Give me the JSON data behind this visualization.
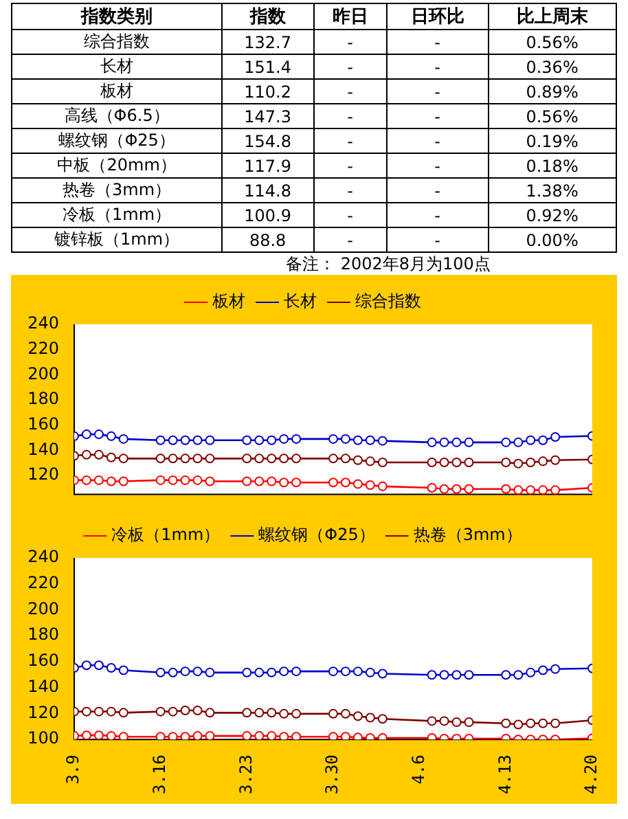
{
  "chart_data": [
    {
      "type": "other",
      "ylabel": "指数类别",
      "data_labels": true,
      "categories": [
        "综合指数",
        "长材",
        "板材",
        "高线（Φ6.5）",
        "螺纹钢（Φ25）",
        "中板（20mm）",
        "热卷（3mm）",
        "冷板（1mm）",
        "镀锌板（1mm）"
      ],
      "series": [
        {
          "name": "指数",
          "values": [
            132.7,
            151.4,
            110.2,
            147.3,
            154.8,
            117.9,
            114.8,
            100.9,
            88.8
          ]
        },
        {
          "name": "昨日",
          "values": [
            null,
            null,
            null,
            null,
            null,
            null,
            null,
            null,
            null
          ],
          "value_labels": [
            "-",
            "-",
            "-",
            "-",
            "-",
            "-",
            "-",
            "-",
            "-"
          ]
        },
        {
          "name": "日环比",
          "values": [
            null,
            null,
            null,
            null,
            null,
            null,
            null,
            null,
            null
          ],
          "value_labels": [
            "-",
            "-",
            "-",
            "-",
            "-",
            "-",
            "-",
            "-",
            "-"
          ]
        },
        {
          "name": "比上周末",
          "values": [
            0.56,
            0.36,
            0.89,
            0.56,
            0.19,
            0.18,
            1.38,
            0.92,
            0.0
          ],
          "value_labels": [
            "0.56%",
            "0.36%",
            "0.89%",
            "0.56%",
            "0.19%",
            "0.18%",
            "1.38%",
            "0.92%",
            "0.00%"
          ]
        }
      ],
      "annotations": [
        "备注：  2002年8月为100点"
      ]
    },
    {
      "type": "line",
      "x": [
        "--03-09",
        "--03-10",
        "--03-11",
        "--03-12",
        "--03-13",
        "--03-16",
        "--03-17",
        "--03-18",
        "--03-19",
        "--03-20",
        "--03-23",
        "--03-24",
        "--03-25",
        "--03-26",
        "--03-27",
        "--03-30",
        "--03-31",
        "--04-01",
        "--04-02",
        "--04-03",
        "--04-07",
        "--04-08",
        "--04-09",
        "--04-10",
        "--04-13",
        "--04-14",
        "--04-15",
        "--04-16",
        "--04-17",
        "--04-20"
      ],
      "series": [
        {
          "name": "板材",
          "color": "#ff0000",
          "values": [
            116.3,
            116.3,
            116.3,
            115.4,
            115.4,
            116.3,
            116.3,
            116.3,
            116.3,
            115.4,
            115.4,
            115.4,
            115.4,
            114.5,
            114.5,
            114.5,
            114.5,
            113.3,
            112.4,
            111.4,
            110.2,
            109.3,
            109.3,
            109.3,
            109.3,
            108.4,
            108.4,
            108.4,
            108.4,
            110.2
          ]
        },
        {
          "name": "长材",
          "color": "#0000cc",
          "values": [
            151.2,
            152.7,
            152.7,
            151.2,
            149,
            148,
            148,
            148,
            148,
            148,
            148,
            148,
            148,
            149,
            149,
            149,
            149,
            148,
            148,
            147.5,
            146.3,
            146.3,
            146.3,
            146.3,
            146.3,
            146.3,
            148,
            148,
            150.6,
            151.4
          ]
        },
        {
          "name": "综合指数",
          "color": "#800000",
          "values": [
            135.6,
            136.5,
            136.5,
            134.4,
            133.5,
            133.5,
            133.5,
            133.5,
            133.5,
            133.5,
            133.5,
            133.5,
            133.5,
            133.5,
            133.5,
            133.5,
            133.5,
            132.2,
            131.3,
            130.4,
            130.4,
            130.4,
            130.4,
            130.4,
            130.4,
            129.5,
            130.4,
            131.3,
            132.2,
            132.7
          ]
        }
      ],
      "xlim": [
        "--03-09",
        "--04-20"
      ],
      "ylim": [
        105,
        240
      ],
      "yticks": [
        120,
        140,
        160,
        180,
        200,
        220,
        240
      ],
      "tick_labels": "y",
      "grid": false,
      "legend": "top",
      "marker": "circle",
      "line_style": "solid"
    },
    {
      "type": "line",
      "x": [
        "--03-09",
        "--03-10",
        "--03-11",
        "--03-12",
        "--03-13",
        "--03-16",
        "--03-17",
        "--03-18",
        "--03-19",
        "--03-20",
        "--03-23",
        "--03-24",
        "--03-25",
        "--03-26",
        "--03-27",
        "--03-30",
        "--03-31",
        "--04-01",
        "--04-02",
        "--04-03",
        "--04-07",
        "--04-08",
        "--04-09",
        "--04-10",
        "--04-13",
        "--04-14",
        "--04-15",
        "--04-16",
        "--04-17",
        "--04-20"
      ],
      "series": [
        {
          "name": "冷板（1mm）",
          "color": "#ff0000",
          "values": [
            102.7,
            103.2,
            103.2,
            102.7,
            102.1,
            102.1,
            102.1,
            102.1,
            102.7,
            102.7,
            102.7,
            102.7,
            102.7,
            102.1,
            102.1,
            102.1,
            102.1,
            101.5,
            101.2,
            101.2,
            101.2,
            100.6,
            100.6,
            100.6,
            100.6,
            100,
            100,
            100,
            100,
            100.9
          ]
        },
        {
          "name": "螺纹钢（Φ25）",
          "color": "#0000cc",
          "values": [
            155.2,
            157.2,
            157.2,
            155.2,
            153.4,
            151.6,
            151.6,
            152.5,
            152.5,
            151.6,
            151.6,
            151.6,
            151.6,
            152.5,
            152.5,
            152.5,
            152.5,
            152.5,
            151.6,
            150.7,
            149.8,
            149.8,
            149.8,
            149.8,
            149.8,
            149.8,
            151.6,
            153.4,
            154.3,
            154.8
          ]
        },
        {
          "name": "热卷（3mm）",
          "color": "#800000",
          "values": [
            121.5,
            121.5,
            121.5,
            121.5,
            120.6,
            121.5,
            121.5,
            122.4,
            122.4,
            120.6,
            120.6,
            120.6,
            120.6,
            119.8,
            119.8,
            119.8,
            119.8,
            118,
            116.8,
            115.9,
            114.2,
            114.2,
            113.3,
            113.3,
            112.4,
            111.5,
            112.4,
            112.4,
            112.4,
            114.8
          ]
        }
      ],
      "xlim": [
        "--03-09",
        "--04-20"
      ],
      "xticks": [
        {
          "value": "--03-09",
          "label": "3.9"
        },
        {
          "value": "--03-16",
          "label": "3.16"
        },
        {
          "value": "--03-23",
          "label": "3.23"
        },
        {
          "value": "--03-30",
          "label": "3.30"
        },
        {
          "value": "--04-06",
          "label": "4.6"
        },
        {
          "value": "--04-13",
          "label": "4.13"
        },
        {
          "value": "--04-20",
          "label": "4.20"
        }
      ],
      "ylim": [
        100,
        240
      ],
      "yticks": [
        100,
        120,
        140,
        160,
        180,
        200,
        220,
        240
      ],
      "grid": false,
      "legend": "top",
      "marker": "circle",
      "line_style": "solid"
    }
  ]
}
